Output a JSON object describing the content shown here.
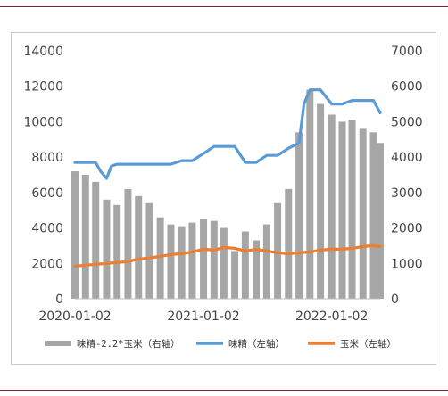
{
  "chart_data": {
    "type": "bar+line",
    "title": "",
    "x_axis": {
      "type": "date",
      "range": [
        "2020-01-02",
        "2022-05-20"
      ],
      "tick_labels": [
        "2020-01-02",
        "2021-01-02",
        "2022-01-02"
      ]
    },
    "y_left": {
      "range": [
        0,
        14000
      ],
      "ticks": [
        0,
        2000,
        4000,
        6000,
        8000,
        10000,
        12000,
        14000
      ]
    },
    "y_right": {
      "range": [
        0,
        7000
      ],
      "ticks": [
        0,
        1000,
        2000,
        3000,
        4000,
        5000,
        6000,
        7000
      ]
    },
    "grid": false,
    "legend_position": "bottom",
    "series": [
      {
        "name": "味精-2.2*玉米（右轴）",
        "kind": "bar",
        "axis": "right",
        "color": "#a6a6a6",
        "x": [
          "2020-01-02",
          "2020-02-01",
          "2020-03-01",
          "2020-04-01",
          "2020-05-01",
          "2020-06-01",
          "2020-07-01",
          "2020-08-01",
          "2020-09-01",
          "2020-10-01",
          "2020-11-01",
          "2020-12-01",
          "2021-01-02",
          "2021-02-01",
          "2021-03-01",
          "2021-04-01",
          "2021-05-01",
          "2021-06-01",
          "2021-07-01",
          "2021-08-01",
          "2021-09-01",
          "2021-10-01",
          "2021-11-01",
          "2021-12-01",
          "2022-01-02",
          "2022-02-01",
          "2022-03-01",
          "2022-04-01",
          "2022-05-01",
          "2022-05-20"
        ],
        "values": [
          3600,
          3500,
          3300,
          2800,
          2650,
          3100,
          2900,
          2700,
          2300,
          2100,
          2050,
          2150,
          2250,
          2200,
          2000,
          1350,
          1900,
          1650,
          2100,
          2700,
          3100,
          4700,
          5900,
          5500,
          5200,
          5000,
          5050,
          4800,
          4700,
          4400
        ]
      },
      {
        "name": "味精（左轴）",
        "kind": "line",
        "axis": "left",
        "color": "#5b9bd5",
        "x": [
          "2020-01-02",
          "2020-03-01",
          "2020-03-15",
          "2020-04-01",
          "2020-04-15",
          "2020-05-01",
          "2020-06-01",
          "2020-07-01",
          "2020-08-01",
          "2020-09-01",
          "2020-10-01",
          "2020-11-01",
          "2020-12-01",
          "2021-01-02",
          "2021-02-01",
          "2021-03-01",
          "2021-04-01",
          "2021-05-01",
          "2021-06-01",
          "2021-07-01",
          "2021-08-01",
          "2021-09-01",
          "2021-10-01",
          "2021-10-15",
          "2021-11-01",
          "2021-12-01",
          "2022-01-02",
          "2022-02-01",
          "2022-03-01",
          "2022-04-01",
          "2022-05-01",
          "2022-05-20"
        ],
        "values": [
          7700,
          7700,
          7200,
          6800,
          7500,
          7600,
          7600,
          7600,
          7600,
          7600,
          7600,
          7800,
          7800,
          8200,
          8600,
          8600,
          8600,
          7700,
          7700,
          8100,
          8100,
          8500,
          8800,
          11000,
          11800,
          11800,
          11000,
          11000,
          11200,
          11200,
          11200,
          10500
        ]
      },
      {
        "name": "玉米（左轴）",
        "kind": "line",
        "axis": "left",
        "color": "#ed7d31",
        "x": [
          "2020-01-02",
          "2020-02-01",
          "2020-03-01",
          "2020-04-01",
          "2020-05-01",
          "2020-06-01",
          "2020-07-01",
          "2020-08-01",
          "2020-09-01",
          "2020-10-01",
          "2020-11-01",
          "2020-12-01",
          "2021-01-02",
          "2021-02-01",
          "2021-03-01",
          "2021-04-01",
          "2021-05-01",
          "2021-06-01",
          "2021-07-01",
          "2021-08-01",
          "2021-09-01",
          "2021-10-01",
          "2021-11-01",
          "2021-12-01",
          "2022-01-02",
          "2022-02-01",
          "2022-03-01",
          "2022-04-01",
          "2022-05-01",
          "2022-05-20"
        ],
        "values": [
          1850,
          1900,
          1950,
          2000,
          2050,
          2100,
          2250,
          2300,
          2400,
          2500,
          2550,
          2650,
          2800,
          2750,
          2900,
          2850,
          2700,
          2800,
          2700,
          2600,
          2550,
          2600,
          2650,
          2750,
          2800,
          2800,
          2850,
          2950,
          3000,
          2950
        ]
      }
    ]
  }
}
